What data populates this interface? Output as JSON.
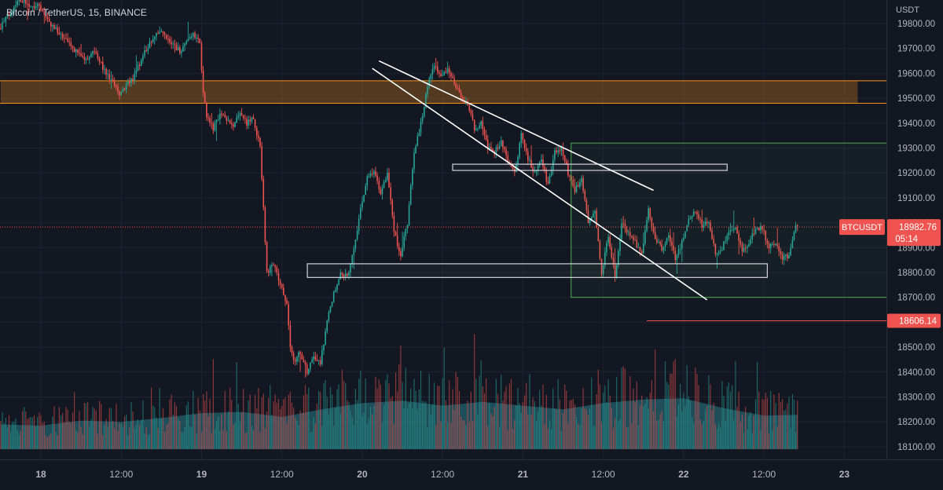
{
  "chart_data": {
    "type": "candlestick",
    "title": "Bitcoin / TetherUS, 15, BINANCE",
    "unit_label": "USDT",
    "y_range": [
      18090,
      19860
    ],
    "y_ticks": [
      19800,
      19700,
      19600,
      19500,
      19400,
      19300,
      19200,
      19100,
      19000,
      18900,
      18800,
      18700,
      18600,
      18500,
      18400,
      18300,
      18200,
      18100
    ],
    "y_tick_labels": [
      "19800.00",
      "19700.00",
      "19600.00",
      "19500.00",
      "19400.00",
      "19300.00",
      "19200.00",
      "19100.00",
      "19000.00",
      "18900.00",
      "18800.00",
      "18700.00",
      "18600.00",
      "18500.00",
      "18400.00",
      "18300.00",
      "18200.00",
      "18100.00"
    ],
    "x_ticks": [
      {
        "label": "18",
        "t": 0
      },
      {
        "label": "12:00",
        "t": 12
      },
      {
        "label": "19",
        "t": 24
      },
      {
        "label": "12:00",
        "t": 36
      },
      {
        "label": "20",
        "t": 48
      },
      {
        "label": "12:00",
        "t": 60
      },
      {
        "label": "21",
        "t": 72
      },
      {
        "label": "12:00",
        "t": 84
      },
      {
        "label": "22",
        "t": 96
      },
      {
        "label": "12:00",
        "t": 108
      },
      {
        "label": "23",
        "t": 120
      }
    ],
    "x_unit": "hours since Nov 18 00:00",
    "price_path": [
      [
        -6,
        19780
      ],
      [
        -3,
        19900
      ],
      [
        -1,
        19870
      ],
      [
        0,
        19880
      ],
      [
        1,
        19820
      ],
      [
        3,
        19760
      ],
      [
        5,
        19700
      ],
      [
        7,
        19650
      ],
      [
        8,
        19700
      ],
      [
        10,
        19600
      ],
      [
        12,
        19520
      ],
      [
        14,
        19580
      ],
      [
        16,
        19700
      ],
      [
        18,
        19770
      ],
      [
        19,
        19740
      ],
      [
        21,
        19690
      ],
      [
        23,
        19760
      ],
      [
        24,
        19720
      ],
      [
        24.5,
        19520
      ],
      [
        25,
        19420
      ],
      [
        26,
        19380
      ],
      [
        27,
        19440
      ],
      [
        28,
        19410
      ],
      [
        29,
        19380
      ],
      [
        30,
        19450
      ],
      [
        31,
        19400
      ],
      [
        32,
        19420
      ],
      [
        33,
        19300
      ],
      [
        33.5,
        19050
      ],
      [
        34,
        18800
      ],
      [
        35,
        18830
      ],
      [
        36,
        18750
      ],
      [
        37,
        18680
      ],
      [
        37.5,
        18500
      ],
      [
        38,
        18440
      ],
      [
        39,
        18480
      ],
      [
        40,
        18400
      ],
      [
        41,
        18460
      ],
      [
        42,
        18440
      ],
      [
        43,
        18600
      ],
      [
        44,
        18720
      ],
      [
        45,
        18800
      ],
      [
        46,
        18780
      ],
      [
        47,
        18900
      ],
      [
        48,
        19050
      ],
      [
        49,
        19180
      ],
      [
        50,
        19200
      ],
      [
        51,
        19120
      ],
      [
        52,
        19200
      ],
      [
        53,
        18960
      ],
      [
        54,
        18870
      ],
      [
        55,
        19000
      ],
      [
        56,
        19280
      ],
      [
        57,
        19400
      ],
      [
        58,
        19550
      ],
      [
        59,
        19640
      ],
      [
        60,
        19580
      ],
      [
        61,
        19620
      ],
      [
        62,
        19560
      ],
      [
        63,
        19500
      ],
      [
        64,
        19480
      ],
      [
        65,
        19380
      ],
      [
        66,
        19400
      ],
      [
        67,
        19300
      ],
      [
        68,
        19280
      ],
      [
        69,
        19330
      ],
      [
        70,
        19250
      ],
      [
        71,
        19200
      ],
      [
        72,
        19350
      ],
      [
        73,
        19260
      ],
      [
        74,
        19200
      ],
      [
        75,
        19250
      ],
      [
        76,
        19150
      ],
      [
        77,
        19280
      ],
      [
        78,
        19300
      ],
      [
        79,
        19200
      ],
      [
        80,
        19130
      ],
      [
        81,
        19170
      ],
      [
        82,
        19000
      ],
      [
        83,
        19050
      ],
      [
        84,
        18800
      ],
      [
        85,
        18950
      ],
      [
        86,
        18780
      ],
      [
        87,
        19000
      ],
      [
        88,
        18960
      ],
      [
        89,
        18920
      ],
      [
        90,
        18880
      ],
      [
        91,
        19050
      ],
      [
        92,
        18940
      ],
      [
        93,
        18890
      ],
      [
        94,
        18960
      ],
      [
        95,
        18850
      ],
      [
        96,
        18920
      ],
      [
        97,
        19010
      ],
      [
        98,
        19050
      ],
      [
        99,
        18990
      ],
      [
        100,
        19000
      ],
      [
        101,
        18880
      ],
      [
        102,
        18900
      ],
      [
        103,
        18960
      ],
      [
        104,
        18980
      ],
      [
        105,
        18880
      ],
      [
        106,
        18920
      ],
      [
        107,
        18980
      ],
      [
        108,
        18980
      ],
      [
        109,
        18900
      ],
      [
        110,
        18920
      ],
      [
        111,
        18860
      ],
      [
        112,
        18870
      ],
      [
        113,
        18990
      ]
    ],
    "volume_area": [
      [
        -6,
        18190
      ],
      [
        0,
        18185
      ],
      [
        6,
        18205
      ],
      [
        12,
        18200
      ],
      [
        18,
        18215
      ],
      [
        24,
        18235
      ],
      [
        30,
        18240
      ],
      [
        36,
        18220
      ],
      [
        42,
        18250
      ],
      [
        48,
        18275
      ],
      [
        54,
        18285
      ],
      [
        60,
        18265
      ],
      [
        66,
        18280
      ],
      [
        72,
        18265
      ],
      [
        78,
        18250
      ],
      [
        84,
        18275
      ],
      [
        90,
        18290
      ],
      [
        96,
        18295
      ],
      [
        102,
        18255
      ],
      [
        108,
        18225
      ],
      [
        113,
        18228
      ]
    ],
    "current_price": {
      "symbol": "BTCUSDT",
      "price": "18982.76",
      "countdown": "05:14",
      "value": 18982.76
    },
    "level_price": {
      "value": 18606.14,
      "label": "18606.14"
    },
    "resistance_zone": {
      "from": 19480,
      "to": 19570,
      "t_from": -6,
      "t_to": 122
    },
    "trend_lines": [
      [
        [
          50.5,
          19650
        ],
        [
          91.5,
          19130
        ]
      ],
      [
        [
          49.5,
          19620
        ],
        [
          99.5,
          18690
        ]
      ]
    ],
    "rectangles": [
      {
        "t1": 79.2,
        "t2": 130.5,
        "p1": 18700,
        "p2": 19320,
        "color": "#4caf50"
      },
      {
        "t1": 61.5,
        "t2": 102.5,
        "p1": 19235,
        "p2": 19210,
        "color": "#d1d4dc"
      },
      {
        "t1": 39.8,
        "t2": 108.5,
        "p1": 18835,
        "p2": 18780,
        "color": "#d1d4dc"
      }
    ],
    "colors": {
      "up": "#26a69a",
      "down": "#ef5350",
      "background": "#131722",
      "zone": "#f7931a",
      "white": "#ffffff"
    }
  }
}
